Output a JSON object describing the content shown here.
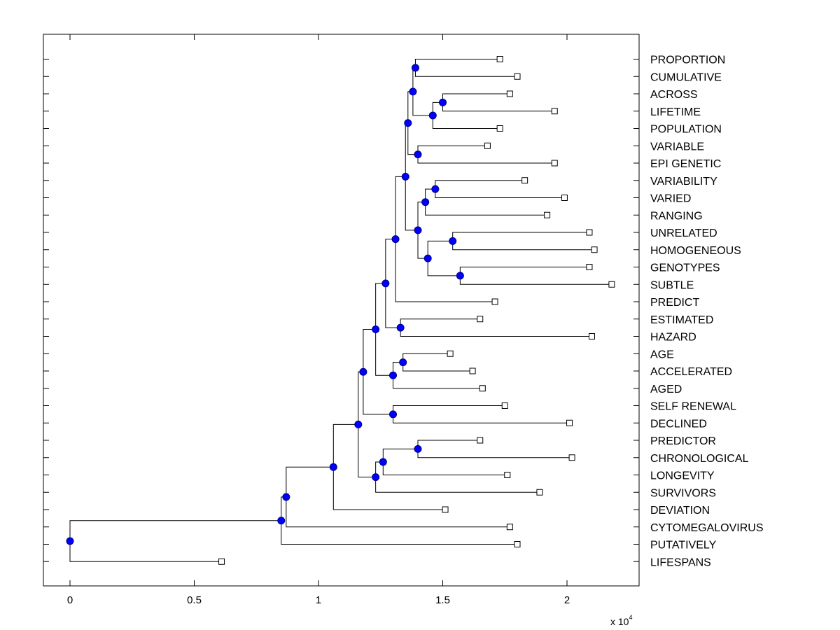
{
  "chart_data": {
    "type": "dendrogram",
    "title": "",
    "xlabel": "",
    "ylabel": "",
    "x_multiplier": {
      "base": "x 10",
      "exponent": "4"
    },
    "xlim": [
      -0.1,
      2.26
    ],
    "x_ticks": [
      {
        "value": 0,
        "label": "0"
      },
      {
        "value": 0.5,
        "label": "0.5"
      },
      {
        "value": 1,
        "label": "1"
      },
      {
        "value": 1.5,
        "label": "1.5"
      },
      {
        "value": 2,
        "label": "2"
      }
    ],
    "colors": {
      "internal_node": "#0000ff",
      "node_outline": "#000080",
      "line": "#000000",
      "leaf_fill": "#ffffff"
    },
    "leaves": [
      {
        "label": "PROPORTION",
        "x": 1.73
      },
      {
        "label": "CUMULATIVE",
        "x": 1.8
      },
      {
        "label": "ACROSS",
        "x": 1.77
      },
      {
        "label": "LIFETIME",
        "x": 1.95
      },
      {
        "label": "POPULATION",
        "x": 1.73
      },
      {
        "label": "VARIABLE",
        "x": 1.68
      },
      {
        "label": "EPI GENETIC",
        "x": 1.95
      },
      {
        "label": "VARIABILITY",
        "x": 1.83
      },
      {
        "label": "VARIED",
        "x": 1.99
      },
      {
        "label": "RANGING",
        "x": 1.92
      },
      {
        "label": "UNRELATED",
        "x": 2.09
      },
      {
        "label": "HOMOGENEOUS",
        "x": 2.11
      },
      {
        "label": "GENOTYPES",
        "x": 2.09
      },
      {
        "label": "SUBTLE",
        "x": 2.18
      },
      {
        "label": "PREDICT",
        "x": 1.71
      },
      {
        "label": "ESTIMATED",
        "x": 1.65
      },
      {
        "label": "HAZARD",
        "x": 2.1
      },
      {
        "label": "AGE",
        "x": 1.53
      },
      {
        "label": "ACCELERATED",
        "x": 1.62
      },
      {
        "label": "AGED",
        "x": 1.66
      },
      {
        "label": "SELF RENEWAL",
        "x": 1.75
      },
      {
        "label": "DECLINED",
        "x": 2.01
      },
      {
        "label": "PREDICTOR",
        "x": 1.65
      },
      {
        "label": "CHRONOLOGICAL",
        "x": 2.02
      },
      {
        "label": "LONGEVITY",
        "x": 1.76
      },
      {
        "label": "SURVIVORS",
        "x": 1.89
      },
      {
        "label": "DEVIATION",
        "x": 1.51
      },
      {
        "label": "CYTOMEGALOVIRUS",
        "x": 1.77
      },
      {
        "label": "PUTATIVELY",
        "x": 1.8
      },
      {
        "label": "LIFESPANS",
        "x": 0.61
      }
    ],
    "internal_nodes": [
      {
        "id": "n1",
        "x": 1.39,
        "children": [
          "PROPORTION",
          "CUMULATIVE"
        ]
      },
      {
        "id": "n2",
        "x": 1.5,
        "children": [
          "ACROSS",
          "LIFETIME"
        ]
      },
      {
        "id": "n3",
        "x": 1.46,
        "children": [
          "n2",
          "POPULATION"
        ]
      },
      {
        "id": "n4",
        "x": 1.38,
        "children": [
          "n1",
          "n3"
        ]
      },
      {
        "id": "n5",
        "x": 1.4,
        "children": [
          "VARIABLE",
          "EPI GENETIC"
        ]
      },
      {
        "id": "n6",
        "x": 1.36,
        "children": [
          "n4",
          "n5"
        ]
      },
      {
        "id": "n7",
        "x": 1.47,
        "children": [
          "VARIABILITY",
          "VARIED"
        ]
      },
      {
        "id": "n8",
        "x": 1.43,
        "children": [
          "n7",
          "RANGING"
        ]
      },
      {
        "id": "n9",
        "x": 1.54,
        "children": [
          "UNRELATED",
          "HOMOGENEOUS"
        ]
      },
      {
        "id": "n10",
        "x": 1.57,
        "children": [
          "GENOTYPES",
          "SUBTLE"
        ]
      },
      {
        "id": "n11",
        "x": 1.44,
        "children": [
          "n9",
          "n10"
        ]
      },
      {
        "id": "n12",
        "x": 1.4,
        "children": [
          "n8",
          "n11"
        ]
      },
      {
        "id": "n13",
        "x": 1.35,
        "children": [
          "n6",
          "n12"
        ]
      },
      {
        "id": "n14",
        "x": 1.31,
        "children": [
          "n13",
          "PREDICT"
        ]
      },
      {
        "id": "n15",
        "x": 1.33,
        "children": [
          "ESTIMATED",
          "HAZARD"
        ]
      },
      {
        "id": "n16",
        "x": 1.27,
        "children": [
          "n14",
          "n15"
        ]
      },
      {
        "id": "n17",
        "x": 1.34,
        "children": [
          "AGE",
          "ACCELERATED"
        ]
      },
      {
        "id": "n18",
        "x": 1.3,
        "children": [
          "n17",
          "AGED"
        ]
      },
      {
        "id": "n19",
        "x": 1.23,
        "children": [
          "n16",
          "n18"
        ]
      },
      {
        "id": "n20",
        "x": 1.3,
        "children": [
          "SELF RENEWAL",
          "DECLINED"
        ]
      },
      {
        "id": "n21",
        "x": 1.18,
        "children": [
          "n19",
          "n20"
        ]
      },
      {
        "id": "n22",
        "x": 1.4,
        "children": [
          "PREDICTOR",
          "CHRONOLOGICAL"
        ]
      },
      {
        "id": "n23",
        "x": 1.26,
        "children": [
          "n22",
          "LONGEVITY"
        ]
      },
      {
        "id": "n24",
        "x": 1.23,
        "children": [
          "n23",
          "SURVIVORS"
        ]
      },
      {
        "id": "n25",
        "x": 1.16,
        "children": [
          "n21",
          "n24"
        ]
      },
      {
        "id": "n26",
        "x": 1.06,
        "children": [
          "n25",
          "DEVIATION"
        ]
      },
      {
        "id": "n27",
        "x": 0.87,
        "children": [
          "n26",
          "CYTOMEGALOVIRUS"
        ]
      },
      {
        "id": "n28",
        "x": 0.85,
        "children": [
          "n27",
          "PUTATIVELY"
        ]
      },
      {
        "id": "n29",
        "x": 0.0,
        "children": [
          "n28",
          "LIFESPANS"
        ]
      }
    ]
  }
}
